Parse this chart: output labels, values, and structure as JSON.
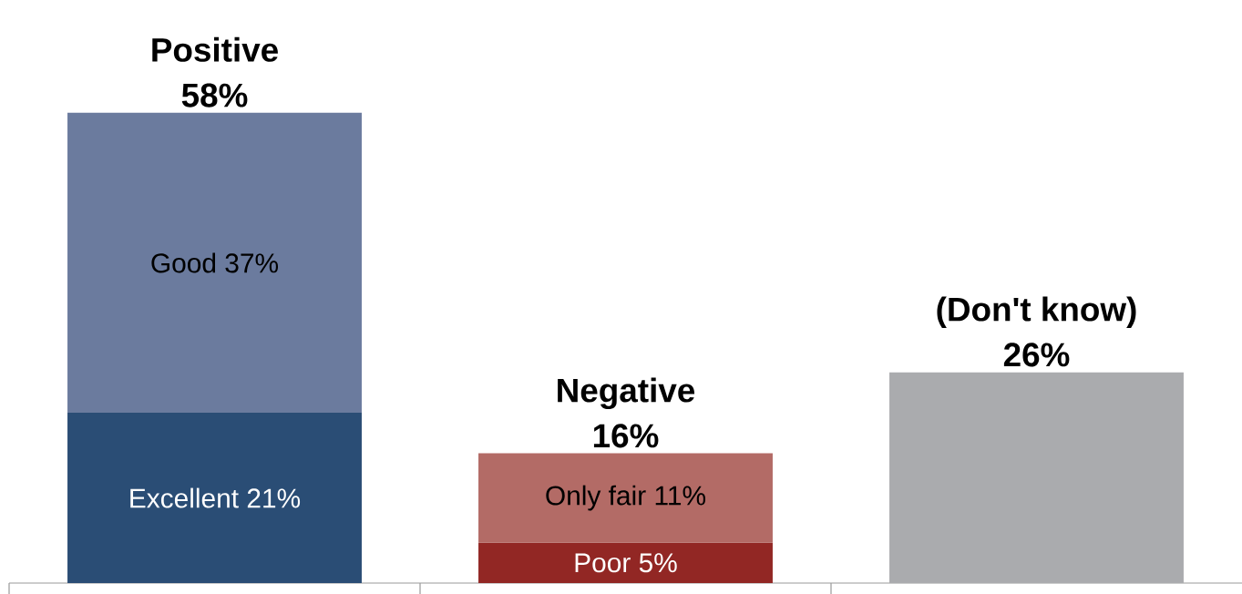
{
  "chart_data": {
    "type": "bar",
    "stacked": true,
    "categories": [
      "Positive",
      "Negative",
      "(Don't know)"
    ],
    "totals": [
      "58%",
      "16%",
      "26%"
    ],
    "series": [
      {
        "colors": [
          "#2a4d75",
          "#922724",
          "#aaabae"
        ],
        "values": [
          21,
          5,
          26
        ],
        "value_labels": [
          "Excellent 21%",
          "Poor 5%",
          null
        ]
      },
      {
        "colors": [
          "#6b7b9e",
          "#b36b66",
          "#aaabae"
        ],
        "values": [
          37,
          11,
          null
        ],
        "value_labels": [
          "Good 37%",
          "Only fair 11%",
          null
        ]
      }
    ]
  }
}
